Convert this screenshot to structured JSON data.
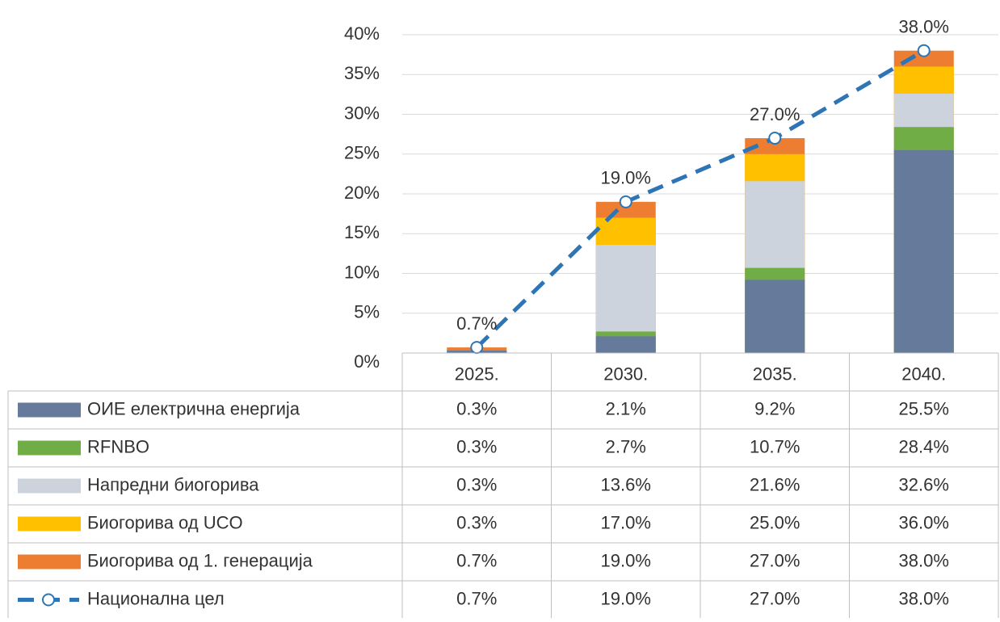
{
  "chart_data": {
    "type": "bar",
    "categories": [
      "2025.",
      "2030.",
      "2035.",
      "2040."
    ],
    "series": [
      {
        "name": "ОИЕ електрична енергија",
        "type": "bar",
        "color": "#667a9c",
        "values": [
          0.3,
          2.1,
          9.2,
          25.5
        ],
        "value_labels": [
          "0.3%",
          "2.1%",
          "9.2%",
          "25.5%"
        ]
      },
      {
        "name": "RFNBO",
        "type": "bar",
        "color": "#70ad47",
        "values": [
          0.3,
          2.7,
          10.7,
          28.4
        ],
        "value_labels": [
          "0.3%",
          "2.7%",
          "10.7%",
          "28.4%"
        ]
      },
      {
        "name": "Напредни биогорива",
        "type": "bar",
        "color": "#ccd3dd",
        "values": [
          0.3,
          13.6,
          21.6,
          32.6
        ],
        "value_labels": [
          "0.3%",
          "13.6%",
          "21.6%",
          "32.6%"
        ]
      },
      {
        "name": "Биогорива од UCO",
        "type": "bar",
        "color": "#ffc000",
        "values": [
          0.3,
          17.0,
          25.0,
          36.0
        ],
        "value_labels": [
          "0.3%",
          "17.0%",
          "25.0%",
          "36.0%"
        ]
      },
      {
        "name": "Биогорива од 1. генерација",
        "type": "bar",
        "color": "#ed7d31",
        "values": [
          0.7,
          19.0,
          27.0,
          38.0
        ],
        "value_labels": [
          "0.7%",
          "19.0%",
          "27.0%",
          "38.0%"
        ]
      },
      {
        "name": "Национална цел",
        "type": "line",
        "color": "#2e75b6",
        "values": [
          0.7,
          19.0,
          27.0,
          38.0
        ],
        "value_labels": [
          "0.7%",
          "19.0%",
          "27.0%",
          "38.0%"
        ]
      }
    ],
    "ylim": [
      0,
      40
    ],
    "yticks": [
      {
        "value": 0,
        "label": "0%"
      },
      {
        "value": 5,
        "label": "5%"
      },
      {
        "value": 10,
        "label": "10%"
      },
      {
        "value": 15,
        "label": "15%"
      },
      {
        "value": 20,
        "label": "20%"
      },
      {
        "value": 25,
        "label": "25%"
      },
      {
        "value": 30,
        "label": "30%"
      },
      {
        "value": 35,
        "label": "35%"
      },
      {
        "value": 40,
        "label": "40%"
      }
    ],
    "grid": true
  }
}
